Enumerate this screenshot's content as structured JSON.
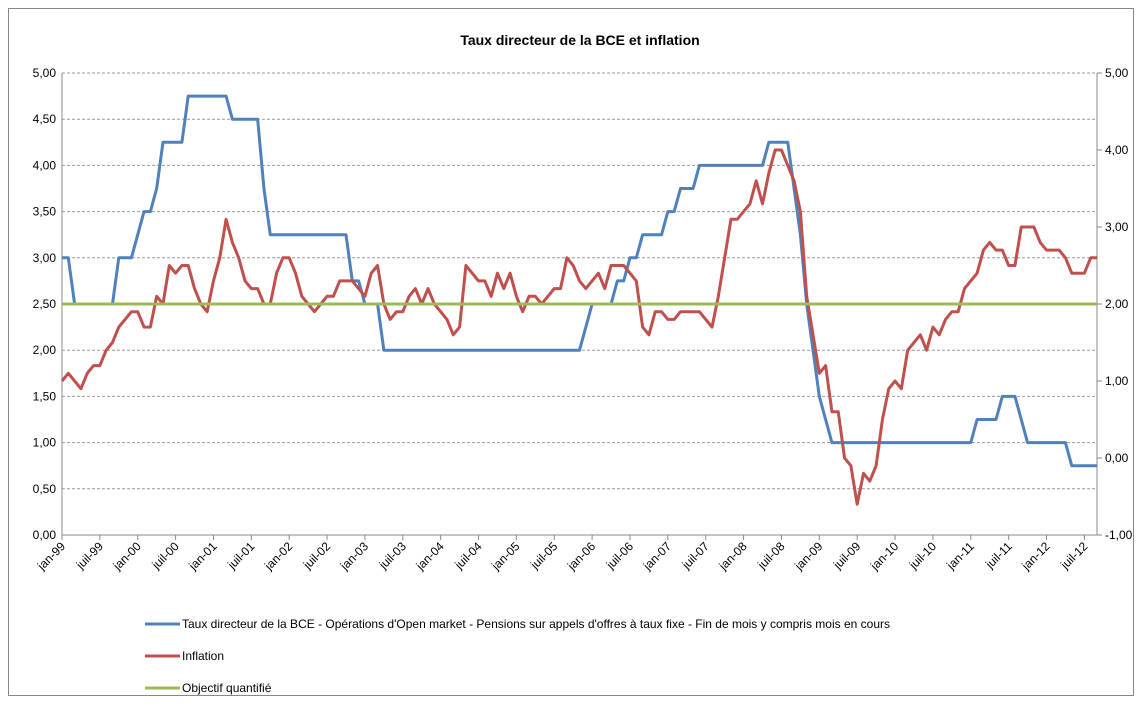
{
  "chart_data": {
    "type": "line",
    "title": "Taux directeur de la BCE et inflation",
    "categories": [
      "jan-99",
      null,
      null,
      null,
      null,
      null,
      "juil-99",
      null,
      null,
      null,
      null,
      null,
      "jan-00",
      null,
      null,
      null,
      null,
      null,
      "juil-00",
      null,
      null,
      null,
      null,
      null,
      "jan-01",
      null,
      null,
      null,
      null,
      null,
      "juil-01",
      null,
      null,
      null,
      null,
      null,
      "jan-02",
      null,
      null,
      null,
      null,
      null,
      "juil-02",
      null,
      null,
      null,
      null,
      null,
      "jan-03",
      null,
      null,
      null,
      null,
      null,
      "juil-03",
      null,
      null,
      null,
      null,
      null,
      "jan-04",
      null,
      null,
      null,
      null,
      null,
      "juil-04",
      null,
      null,
      null,
      null,
      null,
      "jan-05",
      null,
      null,
      null,
      null,
      null,
      "juil-05",
      null,
      null,
      null,
      null,
      null,
      "jan-06",
      null,
      null,
      null,
      null,
      null,
      "juil-06",
      null,
      null,
      null,
      null,
      null,
      "jan-07",
      null,
      null,
      null,
      null,
      null,
      "juil-07",
      null,
      null,
      null,
      null,
      null,
      "jan-08",
      null,
      null,
      null,
      null,
      null,
      "juil-08",
      null,
      null,
      null,
      null,
      null,
      "jan-09",
      null,
      null,
      null,
      null,
      null,
      "juil-09",
      null,
      null,
      null,
      null,
      null,
      "jan-10",
      null,
      null,
      null,
      null,
      null,
      "juil-10",
      null,
      null,
      null,
      null,
      null,
      "jan-11",
      null,
      null,
      null,
      null,
      null,
      "juil-11",
      null,
      null,
      null,
      null,
      null,
      "jan-12",
      null,
      null,
      null,
      null,
      null,
      "juil-12",
      null,
      null
    ],
    "series": [
      {
        "name": "Taux directeur de la BCE - Opérations d'Open market - Pensions sur appels d'offres à taux fixe - Fin de mois y compris mois en cours",
        "color": "#4f81bd",
        "axis": "y",
        "values": [
          3,
          3,
          2.5,
          2.5,
          2.5,
          2.5,
          2.5,
          2.5,
          2.5,
          3,
          3,
          3,
          3.25,
          3.5,
          3.5,
          3.75,
          4.25,
          4.25,
          4.25,
          4.25,
          4.75,
          4.75,
          4.75,
          4.75,
          4.75,
          4.75,
          4.75,
          4.5,
          4.5,
          4.5,
          4.5,
          4.5,
          3.75,
          3.25,
          3.25,
          3.25,
          3.25,
          3.25,
          3.25,
          3.25,
          3.25,
          3.25,
          3.25,
          3.25,
          3.25,
          3.25,
          2.75,
          2.75,
          2.5,
          2.5,
          2.5,
          2,
          2,
          2,
          2,
          2,
          2,
          2,
          2,
          2,
          2,
          2,
          2,
          2,
          2,
          2,
          2,
          2,
          2,
          2,
          2,
          2,
          2,
          2,
          2,
          2,
          2,
          2,
          2,
          2,
          2,
          2,
          2,
          2.25,
          2.5,
          2.5,
          2.5,
          2.5,
          2.75,
          2.75,
          3,
          3,
          3.25,
          3.25,
          3.25,
          3.25,
          3.5,
          3.5,
          3.75,
          3.75,
          3.75,
          4,
          4,
          4,
          4,
          4,
          4,
          4,
          4,
          4,
          4,
          4,
          4.25,
          4.25,
          4.25,
          4.25,
          3.75,
          3.25,
          2.5,
          2,
          1.5,
          1.25,
          1,
          1,
          1,
          1,
          1,
          1,
          1,
          1,
          1,
          1,
          1,
          1,
          1,
          1,
          1,
          1,
          1,
          1,
          1,
          1,
          1,
          1,
          1,
          1.25,
          1.25,
          1.25,
          1.25,
          1.5,
          1.5,
          1.5,
          1.25,
          1,
          1,
          1,
          1,
          1,
          1,
          1,
          0.75,
          0.75,
          0.75,
          0.75,
          0.75
        ]
      },
      {
        "name": "Inflation",
        "color": "#c0504d",
        "axis": "y2",
        "values": [
          1.0,
          1.1,
          1.0,
          0.9,
          1.1,
          1.2,
          1.2,
          1.4,
          1.5,
          1.7,
          1.8,
          1.9,
          1.9,
          1.7,
          1.7,
          2.1,
          2.0,
          2.5,
          2.4,
          2.5,
          2.5,
          2.2,
          2.0,
          1.9,
          2.3,
          2.6,
          3.1,
          2.8,
          2.6,
          2.3,
          2.2,
          2.2,
          2.0,
          2.0,
          2.4,
          2.6,
          2.6,
          2.4,
          2.1,
          2.0,
          1.9,
          2.0,
          2.1,
          2.1,
          2.3,
          2.3,
          2.3,
          2.2,
          2.1,
          2.4,
          2.5,
          2.0,
          1.8,
          1.9,
          1.9,
          2.1,
          2.2,
          2.0,
          2.2,
          2.0,
          1.9,
          1.8,
          1.6,
          1.7,
          2.5,
          2.4,
          2.3,
          2.3,
          2.1,
          2.4,
          2.2,
          2.4,
          2.1,
          1.9,
          2.1,
          2.1,
          2.0,
          2.1,
          2.2,
          2.2,
          2.6,
          2.5,
          2.3,
          2.2,
          2.3,
          2.4,
          2.2,
          2.5,
          2.5,
          2.5,
          2.4,
          2.3,
          1.7,
          1.6,
          1.9,
          1.9,
          1.8,
          1.8,
          1.9,
          1.9,
          1.9,
          1.9,
          1.8,
          1.7,
          2.1,
          2.6,
          3.1,
          3.1,
          3.2,
          3.3,
          3.6,
          3.3,
          3.7,
          4.0,
          4.0,
          3.8,
          3.6,
          3.2,
          2.1,
          1.6,
          1.1,
          1.2,
          0.6,
          0.6,
          0.0,
          -0.1,
          -0.6,
          -0.2,
          -0.3,
          -0.1,
          0.5,
          0.9,
          1.0,
          0.9,
          1.4,
          1.5,
          1.6,
          1.4,
          1.7,
          1.6,
          1.8,
          1.9,
          1.9,
          2.2,
          2.3,
          2.4,
          2.7,
          2.8,
          2.7,
          2.7,
          2.5,
          2.5,
          3.0,
          3.0,
          3.0,
          2.8,
          2.7,
          2.7,
          2.7,
          2.6,
          2.4,
          2.4,
          2.4,
          2.6,
          2.6
        ]
      },
      {
        "name": "Objectif quantifié",
        "color": "#9bbb59",
        "axis": "y2",
        "values": [
          2,
          2,
          2,
          2,
          2,
          2,
          2,
          2,
          2,
          2,
          2,
          2,
          2,
          2,
          2,
          2,
          2,
          2,
          2,
          2,
          2,
          2,
          2,
          2,
          2,
          2,
          2,
          2,
          2,
          2,
          2,
          2,
          2,
          2,
          2,
          2,
          2,
          2,
          2,
          2,
          2,
          2,
          2,
          2,
          2,
          2,
          2,
          2,
          2,
          2,
          2,
          2,
          2,
          2,
          2,
          2,
          2,
          2,
          2,
          2,
          2,
          2,
          2,
          2,
          2,
          2,
          2,
          2,
          2,
          2,
          2,
          2,
          2,
          2,
          2,
          2,
          2,
          2,
          2,
          2,
          2,
          2,
          2,
          2,
          2,
          2,
          2,
          2,
          2,
          2,
          2,
          2,
          2,
          2,
          2,
          2,
          2,
          2,
          2,
          2,
          2,
          2,
          2,
          2,
          2,
          2,
          2,
          2,
          2,
          2,
          2,
          2,
          2,
          2,
          2,
          2,
          2,
          2,
          2,
          2,
          2,
          2,
          2,
          2,
          2,
          2,
          2,
          2,
          2,
          2,
          2,
          2,
          2,
          2,
          2,
          2,
          2,
          2,
          2,
          2,
          2,
          2,
          2,
          2,
          2,
          2,
          2,
          2,
          2,
          2,
          2,
          2,
          2,
          2,
          2,
          2,
          2,
          2,
          2,
          2,
          2,
          2,
          2,
          2,
          2
        ]
      }
    ],
    "ylim": [
      0,
      5
    ],
    "yticks": [
      {
        "value": 0,
        "label": "0,00"
      },
      {
        "value": 0.5,
        "label": "0,50"
      },
      {
        "value": 1,
        "label": "1,00"
      },
      {
        "value": 1.5,
        "label": "1,50"
      },
      {
        "value": 2,
        "label": "2,00"
      },
      {
        "value": 2.5,
        "label": "2,50"
      },
      {
        "value": 3,
        "label": "3,00"
      },
      {
        "value": 3.5,
        "label": "3,50"
      },
      {
        "value": 4,
        "label": "4,00"
      },
      {
        "value": 4.5,
        "label": "4,50"
      },
      {
        "value": 5,
        "label": "5,00"
      }
    ],
    "y2lim": [
      -1,
      5
    ],
    "y2ticks": [
      {
        "value": -1,
        "label": "-1,00"
      },
      {
        "value": 0,
        "label": "0,00"
      },
      {
        "value": 1,
        "label": "1,00"
      },
      {
        "value": 2,
        "label": "2,00"
      },
      {
        "value": 3,
        "label": "3,00"
      },
      {
        "value": 4,
        "label": "4,00"
      },
      {
        "value": 5,
        "label": "5,00"
      }
    ],
    "grid": true,
    "legend": "bottom"
  }
}
